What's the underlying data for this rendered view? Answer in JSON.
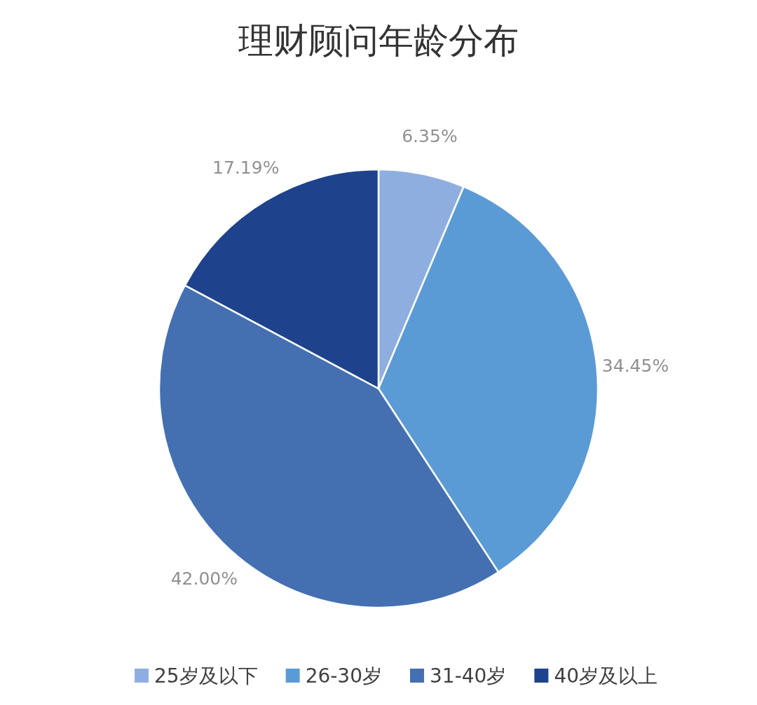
{
  "chart_data": {
    "type": "pie",
    "title": "理财顾问年龄分布",
    "categories": [
      "25岁及以下",
      "26-30岁",
      "31-40岁",
      "40岁及以上"
    ],
    "values": [
      6.35,
      34.45,
      42.0,
      17.19
    ],
    "value_labels": [
      "6.35%",
      "34.45%",
      "42.00%",
      "17.19%"
    ],
    "colors": [
      "#8faee0",
      "#5b9bd5",
      "#4470b2",
      "#1e438c"
    ],
    "legend": "bottom"
  }
}
